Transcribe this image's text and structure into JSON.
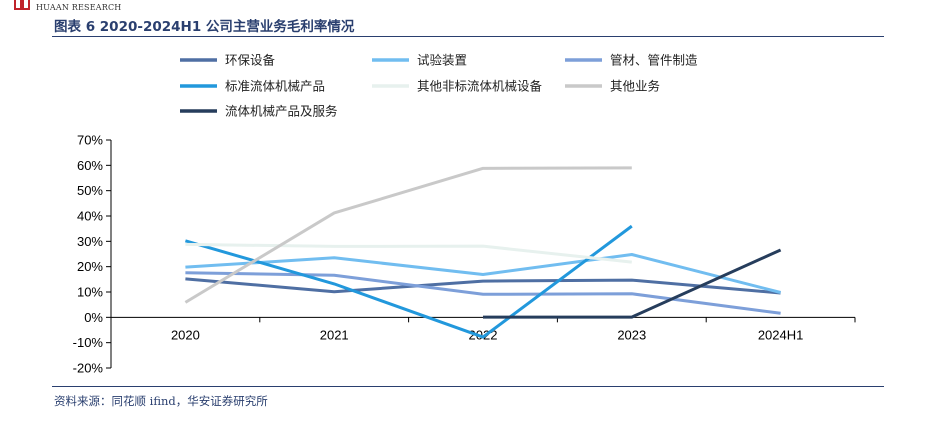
{
  "header": {
    "brand_name": "HUAAN RESEARCH",
    "figure_title": "图表 6 2020-2024H1 公司主营业务毛利率情况"
  },
  "footer": {
    "source": "资料来源：同花顺 ifind，华安证券研究所"
  },
  "colors": {
    "brand_red": "#c0242b",
    "title_navy": "#2a3f6f"
  },
  "chart_data": {
    "type": "line",
    "title": "",
    "xlabel": "",
    "ylabel": "",
    "categories": [
      "2020",
      "2021",
      "2022",
      "2023",
      "2024H1"
    ],
    "ylim": [
      -20,
      70
    ],
    "yticks": [
      "70%",
      "60%",
      "50%",
      "40%",
      "30%",
      "20%",
      "10%",
      "0%",
      "-10%",
      "-20%"
    ],
    "ytick_values": [
      70,
      60,
      50,
      40,
      30,
      20,
      10,
      0,
      -10,
      -20
    ],
    "legend_position": "top",
    "grid": false,
    "series": [
      {
        "name": "环保设备",
        "color": "#4f6fa3",
        "values": [
          15.2,
          10.1,
          14.3,
          14.7,
          9.6
        ]
      },
      {
        "name": "试验装置",
        "color": "#71bdf0",
        "values": [
          19.8,
          23.5,
          16.9,
          24.8,
          9.8
        ]
      },
      {
        "name": "管材、管件制造",
        "color": "#7d9fd9",
        "values": [
          17.6,
          16.6,
          9.1,
          9.3,
          1.6
        ]
      },
      {
        "name": "标准流体机械产品",
        "color": "#2298dc",
        "values": [
          30.2,
          13.2,
          -7.8,
          36.0,
          null
        ]
      },
      {
        "name": "其他非标流体机械设备",
        "color": "#e7f1ee",
        "values": [
          28.8,
          28.0,
          28.1,
          21.8,
          null
        ]
      },
      {
        "name": "其他业务",
        "color": "#c9c9c9",
        "values": [
          5.9,
          41.2,
          58.8,
          59.0,
          null
        ]
      },
      {
        "name": "流体机械产品及服务",
        "color": "#263d5c",
        "values": [
          null,
          null,
          0.1,
          0.1,
          26.6
        ]
      }
    ]
  }
}
